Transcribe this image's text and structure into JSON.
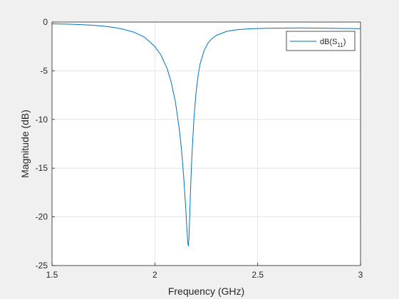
{
  "chart_data": {
    "type": "line",
    "title": "",
    "xlabel": "Frequency (GHz)",
    "ylabel": "Magnitude (dB)",
    "xlim": [
      1.5,
      3
    ],
    "ylim": [
      -25,
      0
    ],
    "x_ticks": [
      1.5,
      2,
      2.5,
      3
    ],
    "x_tick_labels": [
      "1.5",
      "2",
      "2.5",
      "3"
    ],
    "y_ticks": [
      0,
      -5,
      -10,
      -15,
      -20,
      -25
    ],
    "y_tick_labels": [
      "0",
      "-5",
      "-10",
      "-15",
      "-20",
      "-25"
    ],
    "grid": true,
    "legend": {
      "position": "top-right",
      "entry_main": "dB(S",
      "entry_subscript": "11",
      "entry_close": ")"
    },
    "series": [
      {
        "name": "dB(S11)",
        "color": "#0072bd",
        "x": [
          1.5,
          1.55,
          1.6,
          1.65,
          1.7,
          1.75,
          1.8,
          1.85,
          1.9,
          1.95,
          2.0,
          2.03,
          2.06,
          2.08,
          2.1,
          2.12,
          2.13,
          2.14,
          2.15,
          2.155,
          2.16,
          2.163,
          2.166,
          2.17,
          2.175,
          2.18,
          2.19,
          2.2,
          2.21,
          2.22,
          2.24,
          2.26,
          2.28,
          2.3,
          2.35,
          2.4,
          2.45,
          2.5,
          2.6,
          2.7,
          2.8,
          2.9,
          3.0
        ],
        "y": [
          -0.18,
          -0.2,
          -0.23,
          -0.27,
          -0.33,
          -0.42,
          -0.55,
          -0.75,
          -1.05,
          -1.55,
          -2.5,
          -3.4,
          -4.8,
          -6.2,
          -8.2,
          -11.2,
          -13.2,
          -15.8,
          -19.0,
          -21.0,
          -22.6,
          -23.0,
          -22.0,
          -19.5,
          -16.5,
          -13.8,
          -9.9,
          -7.3,
          -5.5,
          -4.3,
          -2.9,
          -2.1,
          -1.65,
          -1.35,
          -0.95,
          -0.78,
          -0.7,
          -0.66,
          -0.62,
          -0.6,
          -0.62,
          -0.65,
          -0.68
        ]
      }
    ]
  }
}
